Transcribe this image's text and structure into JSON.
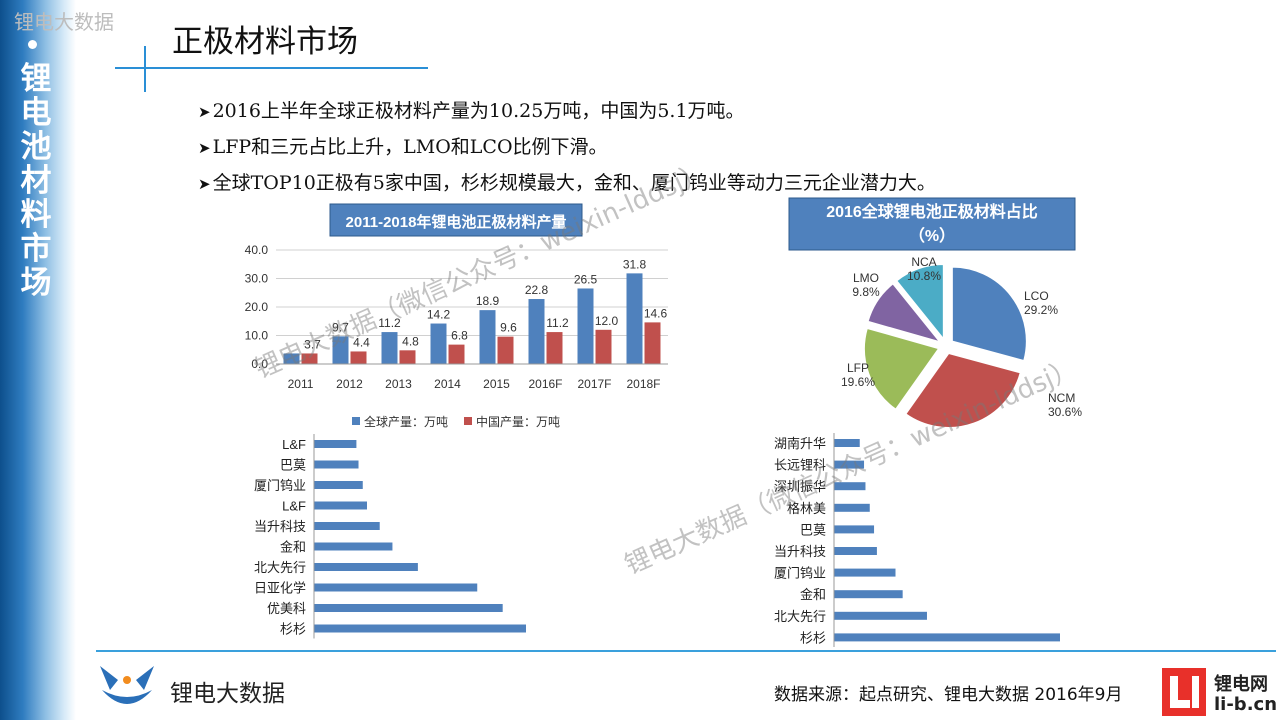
{
  "header": {
    "watermark_corner": "锂电大数据",
    "sidebar_title": "锂电池材料市场",
    "page_title": "正极材料市场"
  },
  "bullets": [
    "2016上半年全球正极材料产量为10.25万吨，中国为5.1万吨。",
    "LFP和三元占比上升，LMO和LCO比例下滑。",
    "全球TOP10正极有5家中国，杉杉规模最大，金和、厦门钨业等动力三元企业潜力大。"
  ],
  "watermarks": [
    "锂电大数据（微信公众号：weixin-lddsj）",
    "锂电大数据（微信公众号：weixin-lddsj）"
  ],
  "footer": {
    "logo_text": "锂电大数据",
    "source": "数据来源：起点研究、锂电大数据  2016年9月",
    "brand_line1": "锂电网",
    "brand_line2": "li-b.cn"
  },
  "colors": {
    "blue": "#4f81bd",
    "red": "#c0504d",
    "green": "#9bbb59",
    "purple": "#8064a2",
    "teal": "#4bacc6",
    "accent": "#2a8fd6"
  },
  "chart_data": [
    {
      "type": "bar",
      "title": "2011-2018年锂电池正极材料产量",
      "categories": [
        "2011",
        "2012",
        "2013",
        "2014",
        "2015",
        "2016F",
        "2017F",
        "2018F"
      ],
      "series": [
        {
          "name": "全球产量：万吨",
          "values": [
            3.7,
            9.7,
            11.2,
            14.2,
            18.9,
            22.8,
            26.5,
            31.8
          ]
        },
        {
          "name": "中国产量：万吨",
          "values": [
            3.7,
            4.4,
            4.8,
            6.8,
            9.6,
            11.2,
            12.0,
            14.6
          ]
        }
      ],
      "ylim": [
        0,
        40
      ],
      "yticks": [
        "0.0",
        "10.0",
        "20.0",
        "30.0",
        "40.0"
      ],
      "data_labels": [
        [
          "",
          "9.7",
          "11.2",
          "14.2",
          "18.9",
          "22.8",
          "26.5",
          "31.8"
        ],
        [
          "3.7",
          "4.4",
          "4.8",
          "6.8",
          "9.6",
          "11.2",
          "12.0",
          "14.6"
        ]
      ],
      "legend": "bottom",
      "grid": true
    },
    {
      "type": "pie",
      "title": "2016全球锂电池正极材料占比（%）",
      "slices": [
        {
          "label": "LCO",
          "value": 29.2,
          "text": "29.2%"
        },
        {
          "label": "NCM",
          "value": 30.6,
          "text": "30.6%"
        },
        {
          "label": "LFP",
          "value": 19.6,
          "text": "19.6%"
        },
        {
          "label": "LMO",
          "value": 9.8,
          "text": "9.8%"
        },
        {
          "label": "NCA",
          "value": 10.8,
          "text": "10.8%"
        }
      ]
    },
    {
      "type": "bar",
      "orientation": "horizontal",
      "categories": [
        "L&F",
        "巴莫",
        "厦门钨业",
        "L&F",
        "当升科技",
        "金和",
        "北大先行",
        "日亚化学",
        "优美科",
        "杉杉"
      ],
      "values": [
        10,
        10.5,
        11.5,
        12.5,
        15.5,
        18.5,
        24.5,
        38.5,
        44.5,
        50
      ]
    },
    {
      "type": "bar",
      "orientation": "horizontal",
      "categories": [
        "湖南升华",
        "长远锂科",
        "深圳振华",
        "格林美",
        "巴莫",
        "当升科技",
        "厦门钨业",
        "金和",
        "北大先行",
        "杉杉"
      ],
      "values": [
        9,
        10.5,
        11,
        12.5,
        14,
        15,
        21.5,
        24,
        32.5,
        79
      ]
    }
  ]
}
